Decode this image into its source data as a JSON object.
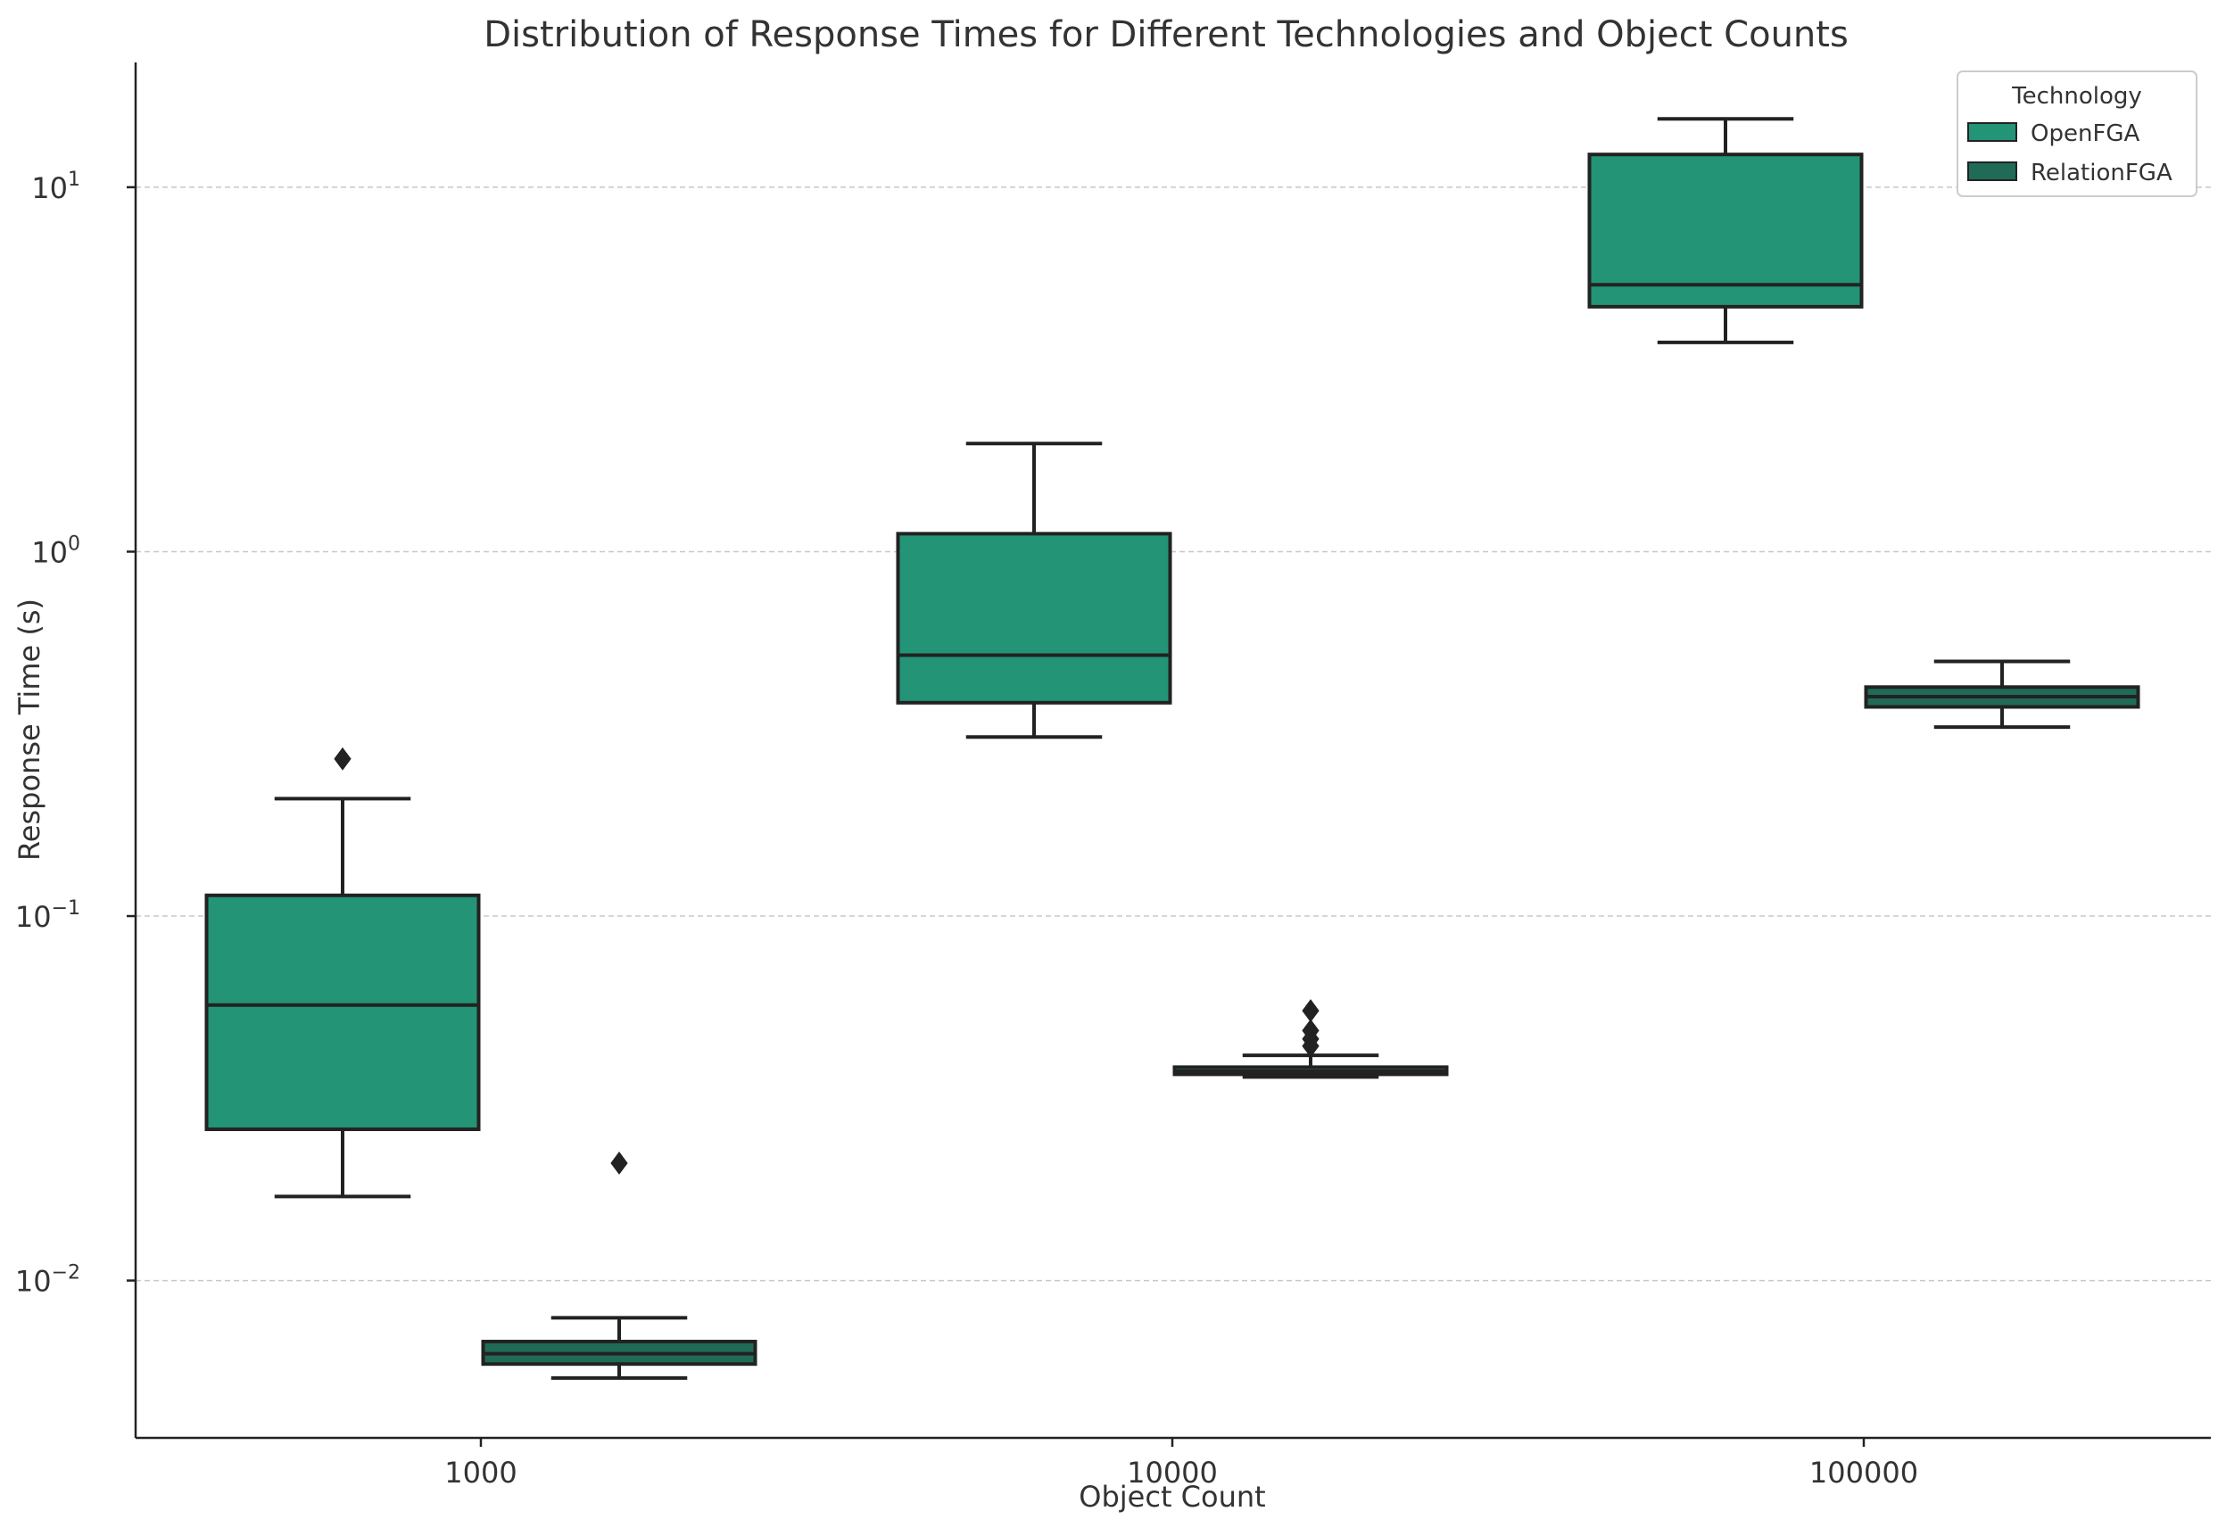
{
  "chart_data": {
    "type": "box",
    "title": "Distribution of Response Times for Different Technologies and Object Counts",
    "xlabel": "Object Count",
    "ylabel": "Response Time (s)",
    "yscale": "log",
    "ylim": [
      0.0037,
      22
    ],
    "yticks": [
      {
        "value": 0.01,
        "base": "10",
        "exp": "−2"
      },
      {
        "value": 0.1,
        "base": "10",
        "exp": "−1"
      },
      {
        "value": 1,
        "base": "10",
        "exp": "0"
      },
      {
        "value": 10,
        "base": "10",
        "exp": "1"
      }
    ],
    "grid": "y-major dashed",
    "categories": [
      "1000",
      "10000",
      "100000"
    ],
    "legend": {
      "title": "Technology",
      "position": "top-right"
    },
    "series": [
      {
        "name": "OpenFGA",
        "color": "#239476",
        "boxes": [
          {
            "category": "1000",
            "whisker_low": 0.017,
            "q1": 0.026,
            "median": 0.057,
            "q3": 0.114,
            "whisker_high": 0.21,
            "fliers": [
              0.27
            ]
          },
          {
            "category": "10000",
            "whisker_low": 0.31,
            "q1": 0.385,
            "median": 0.52,
            "q3": 1.12,
            "whisker_high": 1.98,
            "fliers": []
          },
          {
            "category": "100000",
            "whisker_low": 3.75,
            "q1": 4.7,
            "median": 5.4,
            "q3": 12.3,
            "whisker_high": 15.4,
            "fliers": []
          }
        ]
      },
      {
        "name": "RelationFGA",
        "color": "#1f6b56",
        "boxes": [
          {
            "category": "1000",
            "whisker_low": 0.0054,
            "q1": 0.0059,
            "median": 0.0063,
            "q3": 0.0068,
            "whisker_high": 0.0079,
            "fliers": [
              0.021
            ]
          },
          {
            "category": "10000",
            "whisker_low": 0.0362,
            "q1": 0.0368,
            "median": 0.0375,
            "q3": 0.0385,
            "whisker_high": 0.0415,
            "fliers": [
              0.044,
              0.046,
              0.0485,
              0.055
            ]
          },
          {
            "category": "100000",
            "whisker_low": 0.33,
            "q1": 0.375,
            "median": 0.4,
            "q3": 0.425,
            "whisker_high": 0.5,
            "fliers": []
          }
        ]
      }
    ]
  }
}
